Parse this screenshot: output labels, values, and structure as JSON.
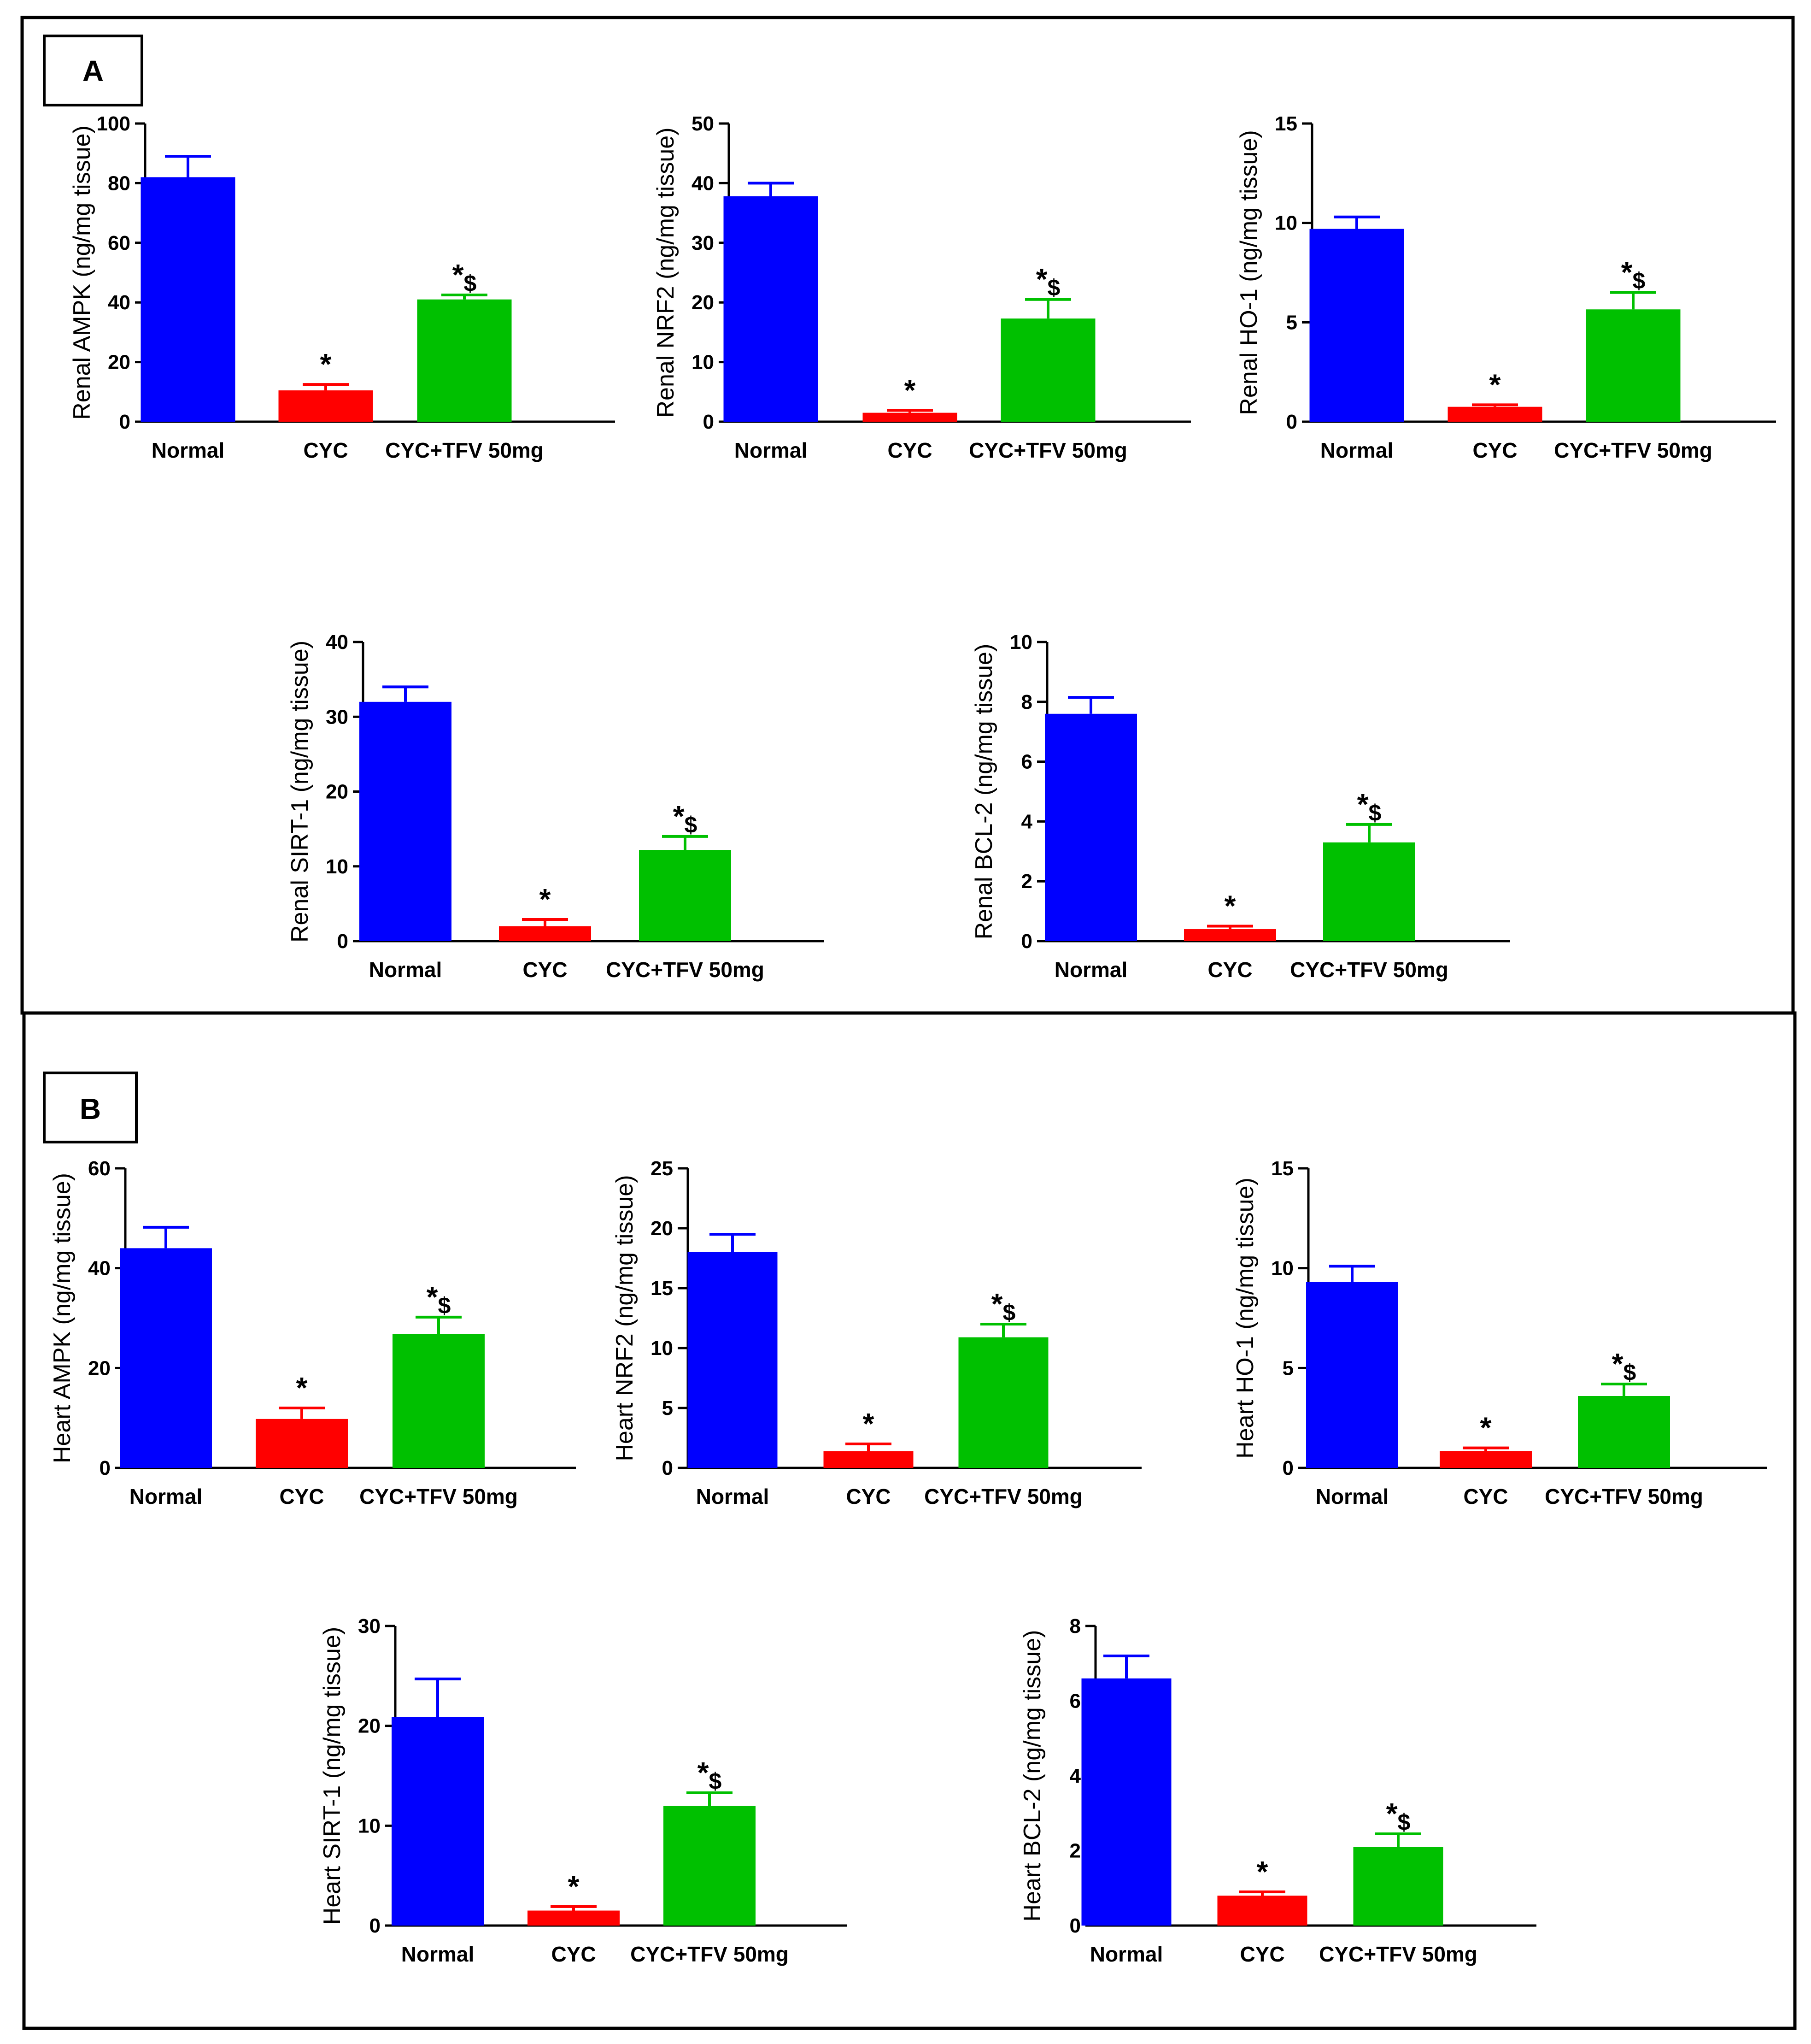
{
  "panels": [
    {
      "id": "A",
      "label": "A"
    },
    {
      "id": "B",
      "label": "B"
    }
  ],
  "colors": {
    "Normal": "#0000ff",
    "CYC": "#ff0000",
    "CYC+TFV 50mg": "#00c000"
  },
  "chart_data": [
    {
      "type": "bar",
      "panel": "A",
      "ylabel": "Renal AMPK (ng/mg tissue)",
      "categories": [
        "Normal",
        "CYC",
        "CYC+TFV 50mg"
      ],
      "values": [
        82,
        10.5,
        41
      ],
      "errors": [
        7,
        2,
        1.5
      ],
      "significance": [
        "",
        "*",
        "*$"
      ],
      "ylim": [
        0,
        100
      ],
      "yticks": [
        0,
        20,
        40,
        60,
        80,
        100
      ]
    },
    {
      "type": "bar",
      "panel": "A",
      "ylabel": "Renal NRF2 (ng/mg tissue)",
      "categories": [
        "Normal",
        "CYC",
        "CYC+TFV 50mg"
      ],
      "values": [
        37.8,
        1.5,
        17.3
      ],
      "errors": [
        2.2,
        0.4,
        3.2
      ],
      "significance": [
        "",
        "*",
        "*$"
      ],
      "ylim": [
        0,
        50
      ],
      "yticks": [
        0,
        10,
        20,
        30,
        40,
        50
      ]
    },
    {
      "type": "bar",
      "panel": "A",
      "ylabel": "Renal HO-1 (ng/mg tissue)",
      "categories": [
        "Normal",
        "CYC",
        "CYC+TFV 50mg"
      ],
      "values": [
        9.7,
        0.75,
        5.65
      ],
      "errors": [
        0.6,
        0.1,
        0.85
      ],
      "significance": [
        "",
        "*",
        "*$"
      ],
      "ylim": [
        0,
        15
      ],
      "yticks": [
        0,
        5,
        10,
        15
      ]
    },
    {
      "type": "bar",
      "panel": "A",
      "ylabel": "Renal SIRT-1 (ng/mg tissue)",
      "categories": [
        "Normal",
        "CYC",
        "CYC+TFV 50mg"
      ],
      "values": [
        32,
        2,
        12.2
      ],
      "errors": [
        2,
        0.9,
        1.8
      ],
      "significance": [
        "",
        "*",
        "*$"
      ],
      "ylim": [
        0,
        40
      ],
      "yticks": [
        0,
        10,
        20,
        30,
        40
      ]
    },
    {
      "type": "bar",
      "panel": "A",
      "ylabel": "Renal BCL-2 (ng/mg tissue)",
      "categories": [
        "Normal",
        "CYC",
        "CYC+TFV 50mg"
      ],
      "values": [
        7.6,
        0.4,
        3.3
      ],
      "errors": [
        0.55,
        0.1,
        0.6
      ],
      "significance": [
        "",
        "*",
        "*$"
      ],
      "ylim": [
        0,
        10
      ],
      "yticks": [
        0,
        2,
        4,
        6,
        8,
        10
      ]
    },
    {
      "type": "bar",
      "panel": "B",
      "ylabel": "Heart AMPK (ng/mg tissue)",
      "categories": [
        "Normal",
        "CYC",
        "CYC+TFV 50mg"
      ],
      "values": [
        44,
        9.8,
        26.8
      ],
      "errors": [
        4.2,
        2.2,
        3.4
      ],
      "significance": [
        "",
        "*",
        "*$"
      ],
      "ylim": [
        0,
        60
      ],
      "yticks": [
        0,
        20,
        40,
        60
      ]
    },
    {
      "type": "bar",
      "panel": "B",
      "ylabel": "Heart NRF2 (ng/mg tissue)",
      "categories": [
        "Normal",
        "CYC",
        "CYC+TFV 50mg"
      ],
      "values": [
        18,
        1.4,
        10.9
      ],
      "errors": [
        1.5,
        0.6,
        1.1
      ],
      "significance": [
        "",
        "*",
        "*$"
      ],
      "ylim": [
        0,
        25
      ],
      "yticks": [
        0,
        5,
        10,
        15,
        20,
        25
      ]
    },
    {
      "type": "bar",
      "panel": "B",
      "ylabel": "Heart HO-1 (ng/mg tissue)",
      "categories": [
        "Normal",
        "CYC",
        "CYC+TFV 50mg"
      ],
      "values": [
        9.3,
        0.85,
        3.6
      ],
      "errors": [
        0.8,
        0.15,
        0.6
      ],
      "significance": [
        "",
        "*",
        "*$"
      ],
      "ylim": [
        0,
        15
      ],
      "yticks": [
        0,
        5,
        10,
        15
      ]
    },
    {
      "type": "bar",
      "panel": "B",
      "ylabel": "Heart SIRT-1 (ng/mg tissue)",
      "categories": [
        "Normal",
        "CYC",
        "CYC+TFV 50mg"
      ],
      "values": [
        20.9,
        1.5,
        12
      ],
      "errors": [
        3.8,
        0.4,
        1.3
      ],
      "significance": [
        "",
        "*",
        "*$"
      ],
      "ylim": [
        0,
        30
      ],
      "yticks": [
        0,
        10,
        20,
        30
      ]
    },
    {
      "type": "bar",
      "panel": "B",
      "ylabel": "Heart BCL-2 (ng/mg tissue)",
      "categories": [
        "Normal",
        "CYC",
        "CYC+TFV 50mg"
      ],
      "values": [
        6.6,
        0.8,
        2.1
      ],
      "errors": [
        0.6,
        0.1,
        0.35
      ],
      "significance": [
        "",
        "*",
        "*$"
      ],
      "ylim": [
        0,
        8
      ],
      "yticks": [
        0,
        2,
        4,
        6,
        8
      ]
    }
  ]
}
